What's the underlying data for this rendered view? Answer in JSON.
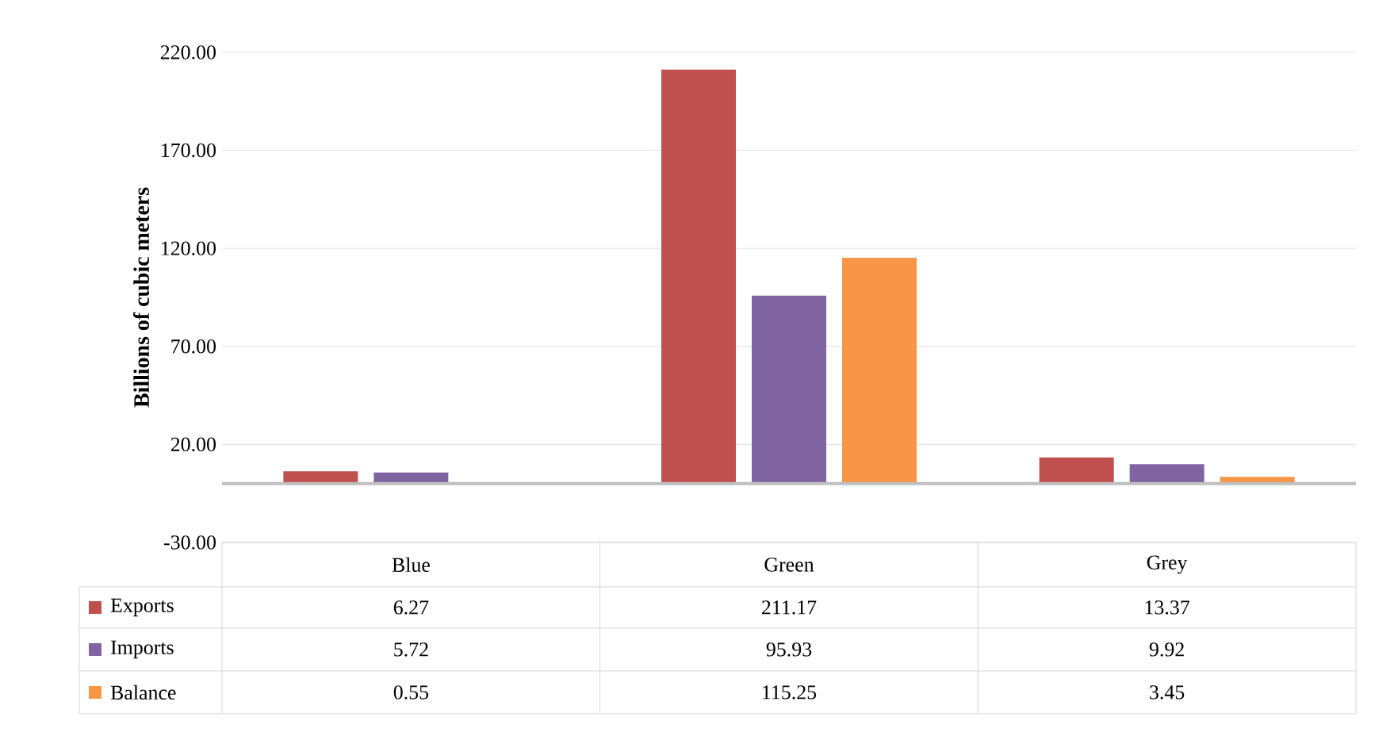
{
  "chart_data": {
    "type": "bar",
    "ylabel": "Billions of cubic meters",
    "categories": [
      "Blue",
      "Green",
      "Grey"
    ],
    "series": [
      {
        "name": "Exports",
        "color": "#c0504d",
        "values": [
          6.27,
          211.17,
          13.37
        ]
      },
      {
        "name": "Imports",
        "color": "#8064a2",
        "values": [
          5.72,
          95.93,
          9.92
        ]
      },
      {
        "name": "Balance",
        "color": "#f79646",
        "values": [
          0.55,
          115.25,
          3.45
        ]
      }
    ],
    "ylim": [
      -30,
      220
    ],
    "yticks": [
      {
        "value": -30,
        "label": "-30.00"
      },
      {
        "value": 20,
        "label": "20.00"
      },
      {
        "value": 70,
        "label": "70.00"
      },
      {
        "value": 120,
        "label": "120.00"
      },
      {
        "value": 170,
        "label": "170.00"
      },
      {
        "value": 220,
        "label": "220.00"
      }
    ],
    "grid": "y",
    "legend": "bottom",
    "data_labels": true
  }
}
